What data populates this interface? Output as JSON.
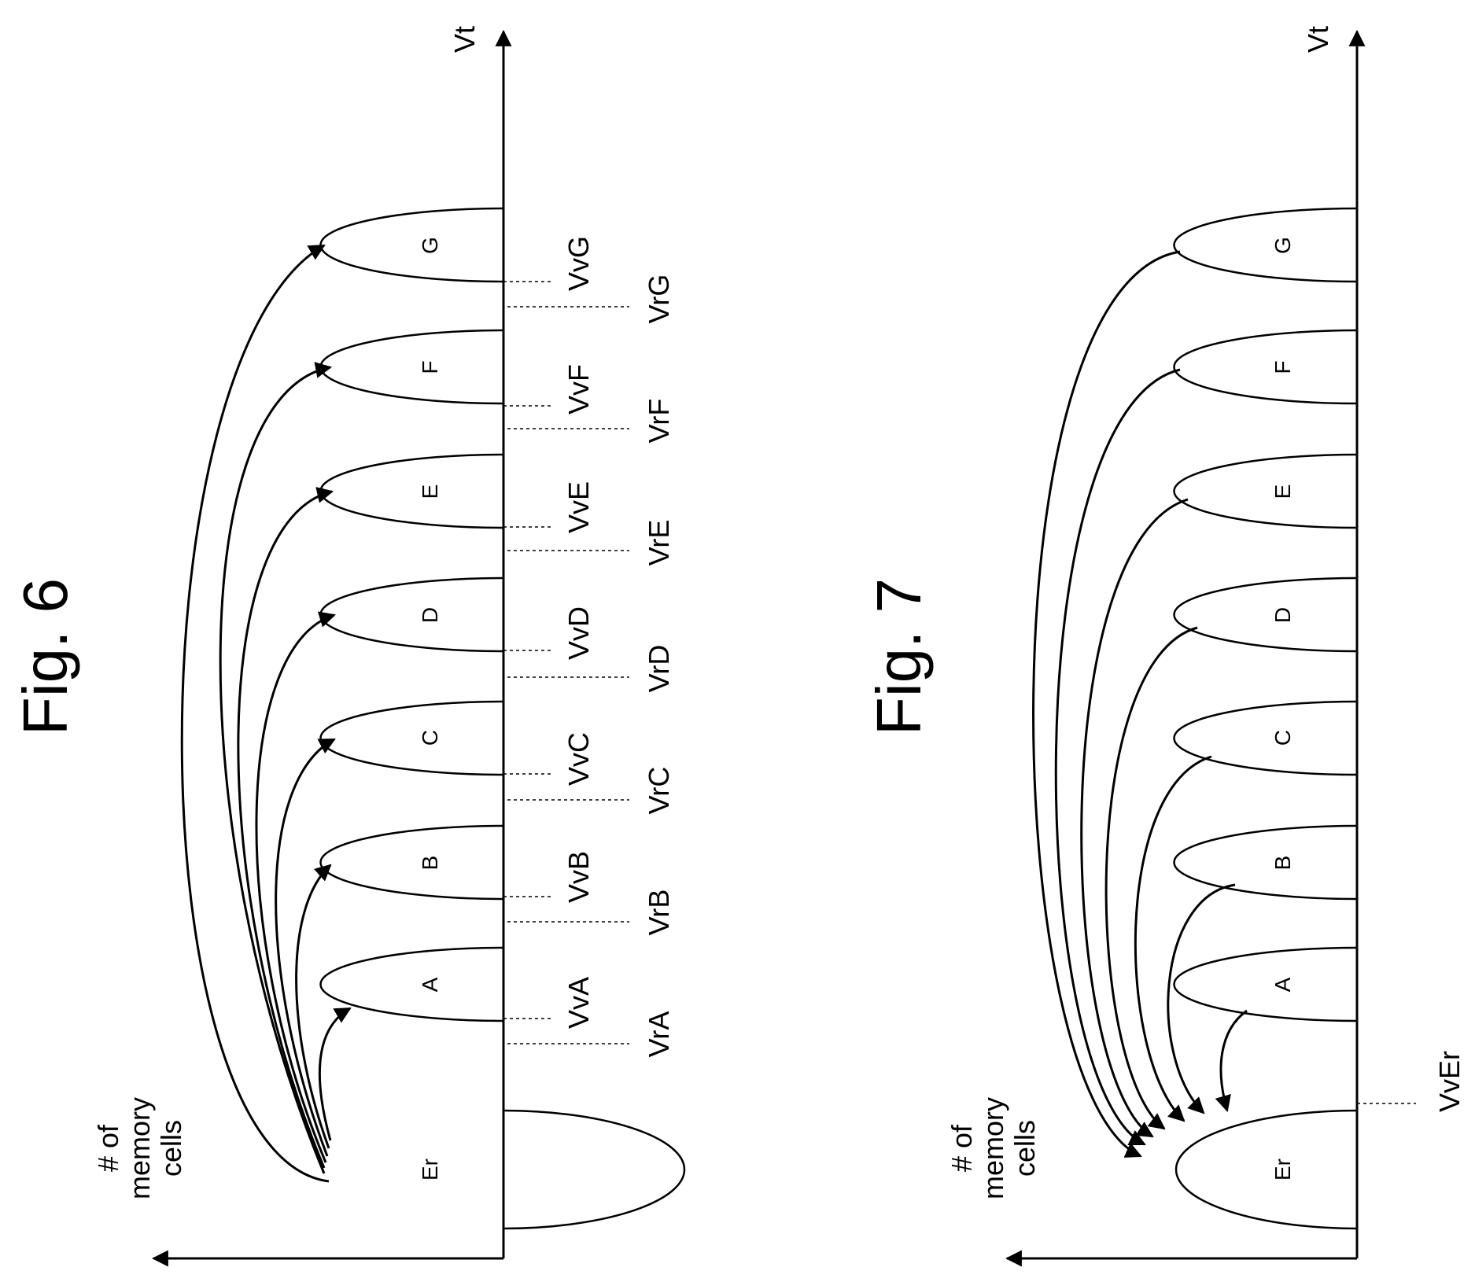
{
  "fig6": {
    "title": "Fig. 6",
    "y_axis_label_lines": [
      "# of",
      "memory",
      "cells"
    ],
    "x_axis_label": "Vt",
    "states": [
      "Er",
      "A",
      "B",
      "C",
      "D",
      "E",
      "F",
      "G"
    ],
    "verify_labels": [
      "VvA",
      "VvB",
      "VvC",
      "VvD",
      "VvE",
      "VvF",
      "VvG"
    ],
    "read_labels": [
      "VrA",
      "VrB",
      "VrC",
      "VrD",
      "VrE",
      "VrF",
      "VrG"
    ]
  },
  "fig7": {
    "title": "Fig. 7",
    "y_axis_label_lines": [
      "# of",
      "memory",
      "cells"
    ],
    "x_axis_label": "Vt",
    "states": [
      "Er",
      "A",
      "B",
      "C",
      "D",
      "E",
      "F",
      "G"
    ],
    "erase_verify_label": "VvEr"
  },
  "colors": {
    "ink": "#000000",
    "background": "#ffffff"
  }
}
